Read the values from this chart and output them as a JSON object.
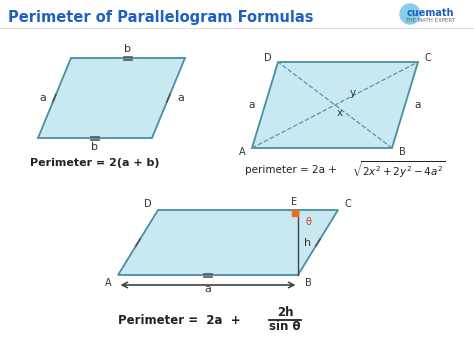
{
  "title": "Perimeter of Parallelogram Formulas",
  "title_color": "#2060c0",
  "bg_color": "#ffffff",
  "para_fill": "#c8e8f2",
  "para_edge": "#4a8fa0",
  "formula1": "Perimeter = 2(a + b)",
  "formula2_pre": "perimeter = 2a + ",
  "formula2_sqrt": "2x² + 2y² − 4a²",
  "formula3_pre": "Perimeter =  2a  +",
  "formula3_num": "2h",
  "formula3_den": "sin θ"
}
